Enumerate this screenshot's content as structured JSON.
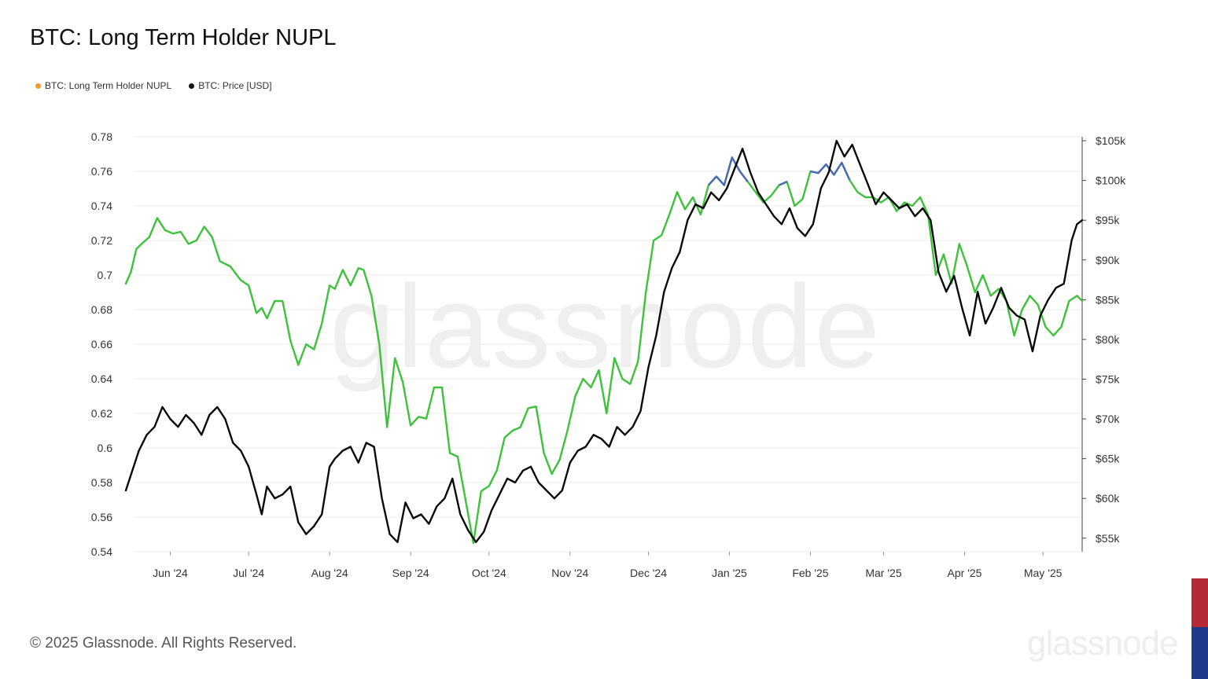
{
  "title": "BTC: Long Term Holder NUPL",
  "legend": [
    {
      "label": "BTC: Long Term Holder NUPL",
      "color": "#f39c2d"
    },
    {
      "label": "BTC: Price [USD]",
      "color": "#111111"
    }
  ],
  "copyright": "© 2025 Glassnode. All Rights Reserved.",
  "watermark": "glassnode",
  "corner_logo": "glassnode",
  "colors": {
    "nupl_line": "#3ec13b",
    "nupl_line_peak": "#4a67b8",
    "price_line": "#0a0a0a",
    "grid": "#ececec",
    "axis_text": "#333333",
    "flag_top": "#b52a35",
    "flag_bottom": "#1f3a8a"
  },
  "chart_data": {
    "type": "line",
    "x_ticks": [
      "Jun '24",
      "Jul '24",
      "Aug '24",
      "Sep '24",
      "Oct '24",
      "Nov '24",
      "Dec '24",
      "Jan '25",
      "Feb '25",
      "Mar '25",
      "Apr '25",
      "May '25"
    ],
    "x_range": [
      "2024-05-15",
      "2025-05-16"
    ],
    "y_left": {
      "ticks": [
        "0.78",
        "0.76",
        "0.74",
        "0.72",
        "0.7",
        "0.68",
        "0.66",
        "0.64",
        "0.62",
        "0.6",
        "0.58",
        "0.56",
        "0.54"
      ],
      "range": [
        0.54,
        0.78
      ]
    },
    "y_right": {
      "ticks": [
        "$105k",
        "$100k",
        "$95k",
        "$90k",
        "$85k",
        "$80k",
        "$75k",
        "$70k",
        "$65k",
        "$60k",
        "$55k"
      ],
      "range": [
        53300,
        105500
      ]
    },
    "grid": true,
    "legend_position": "top-left",
    "series": [
      {
        "name": "BTC: Long Term Holder NUPL",
        "axis": "left",
        "points": [
          [
            "2024-05-15",
            0.695
          ],
          [
            "2024-05-17",
            0.702
          ],
          [
            "2024-05-19",
            0.715
          ],
          [
            "2024-05-21",
            0.718
          ],
          [
            "2024-05-24",
            0.722
          ],
          [
            "2024-05-27",
            0.733
          ],
          [
            "2024-05-30",
            0.726
          ],
          [
            "2024-06-02",
            0.724
          ],
          [
            "2024-06-05",
            0.725
          ],
          [
            "2024-06-08",
            0.718
          ],
          [
            "2024-06-11",
            0.72
          ],
          [
            "2024-06-14",
            0.728
          ],
          [
            "2024-06-17",
            0.722
          ],
          [
            "2024-06-20",
            0.708
          ],
          [
            "2024-06-24",
            0.705
          ],
          [
            "2024-06-28",
            0.697
          ],
          [
            "2024-07-01",
            0.694
          ],
          [
            "2024-07-04",
            0.678
          ],
          [
            "2024-07-06",
            0.681
          ],
          [
            "2024-07-08",
            0.675
          ],
          [
            "2024-07-11",
            0.685
          ],
          [
            "2024-07-14",
            0.685
          ],
          [
            "2024-07-17",
            0.662
          ],
          [
            "2024-07-20",
            0.648
          ],
          [
            "2024-07-23",
            0.66
          ],
          [
            "2024-07-26",
            0.657
          ],
          [
            "2024-07-29",
            0.672
          ],
          [
            "2024-08-01",
            0.694
          ],
          [
            "2024-08-03",
            0.692
          ],
          [
            "2024-08-06",
            0.703
          ],
          [
            "2024-08-09",
            0.694
          ],
          [
            "2024-08-12",
            0.704
          ],
          [
            "2024-08-14",
            0.703
          ],
          [
            "2024-08-17",
            0.688
          ],
          [
            "2024-08-20",
            0.66
          ],
          [
            "2024-08-23",
            0.612
          ],
          [
            "2024-08-26",
            0.652
          ],
          [
            "2024-08-29",
            0.638
          ],
          [
            "2024-09-01",
            0.613
          ],
          [
            "2024-09-04",
            0.618
          ],
          [
            "2024-09-07",
            0.617
          ],
          [
            "2024-09-10",
            0.635
          ],
          [
            "2024-09-13",
            0.635
          ],
          [
            "2024-09-16",
            0.597
          ],
          [
            "2024-09-19",
            0.595
          ],
          [
            "2024-09-22",
            0.57
          ],
          [
            "2024-09-25",
            0.545
          ],
          [
            "2024-09-28",
            0.575
          ],
          [
            "2024-10-01",
            0.578
          ],
          [
            "2024-10-04",
            0.587
          ],
          [
            "2024-10-07",
            0.606
          ],
          [
            "2024-10-10",
            0.61
          ],
          [
            "2024-10-13",
            0.612
          ],
          [
            "2024-10-16",
            0.623
          ],
          [
            "2024-10-19",
            0.624
          ],
          [
            "2024-10-22",
            0.597
          ],
          [
            "2024-10-25",
            0.585
          ],
          [
            "2024-10-28",
            0.593
          ],
          [
            "2024-10-31",
            0.61
          ],
          [
            "2024-11-03",
            0.63
          ],
          [
            "2024-11-06",
            0.64
          ],
          [
            "2024-11-09",
            0.635
          ],
          [
            "2024-11-12",
            0.645
          ],
          [
            "2024-11-15",
            0.62
          ],
          [
            "2024-11-18",
            0.652
          ],
          [
            "2024-11-21",
            0.64
          ],
          [
            "2024-11-24",
            0.637
          ],
          [
            "2024-11-27",
            0.65
          ],
          [
            "2024-11-30",
            0.69
          ],
          [
            "2024-12-03",
            0.72
          ],
          [
            "2024-12-06",
            0.723
          ],
          [
            "2024-12-09",
            0.735
          ],
          [
            "2024-12-12",
            0.748
          ],
          [
            "2024-12-15",
            0.738
          ],
          [
            "2024-12-18",
            0.745
          ],
          [
            "2024-12-21",
            0.735
          ],
          [
            "2024-12-24",
            0.752
          ],
          [
            "2024-12-27",
            0.757
          ],
          [
            "2024-12-30",
            0.752
          ],
          [
            "2025-01-02",
            0.768
          ],
          [
            "2025-01-05",
            0.76
          ],
          [
            "2025-01-08",
            0.754
          ],
          [
            "2025-01-11",
            0.748
          ],
          [
            "2025-01-14",
            0.742
          ],
          [
            "2025-01-17",
            0.746
          ],
          [
            "2025-01-20",
            0.752
          ],
          [
            "2025-01-23",
            0.754
          ],
          [
            "2025-01-26",
            0.74
          ],
          [
            "2025-01-29",
            0.744
          ],
          [
            "2025-02-01",
            0.76
          ],
          [
            "2025-02-04",
            0.759
          ],
          [
            "2025-02-07",
            0.764
          ],
          [
            "2025-02-10",
            0.758
          ],
          [
            "2025-02-13",
            0.765
          ],
          [
            "2025-02-16",
            0.755
          ],
          [
            "2025-02-19",
            0.748
          ],
          [
            "2025-02-22",
            0.745
          ],
          [
            "2025-02-25",
            0.745
          ],
          [
            "2025-02-28",
            0.742
          ],
          [
            "2025-03-03",
            0.745
          ],
          [
            "2025-03-06",
            0.737
          ],
          [
            "2025-03-09",
            0.742
          ],
          [
            "2025-03-12",
            0.74
          ],
          [
            "2025-03-15",
            0.745
          ],
          [
            "2025-03-18",
            0.735
          ],
          [
            "2025-03-21",
            0.7
          ],
          [
            "2025-03-24",
            0.712
          ],
          [
            "2025-03-27",
            0.695
          ],
          [
            "2025-03-30",
            0.718
          ],
          [
            "2025-04-02",
            0.705
          ],
          [
            "2025-04-05",
            0.69
          ],
          [
            "2025-04-08",
            0.7
          ],
          [
            "2025-04-11",
            0.688
          ],
          [
            "2025-04-14",
            0.692
          ],
          [
            "2025-04-17",
            0.685
          ],
          [
            "2025-04-20",
            0.665
          ],
          [
            "2025-04-23",
            0.68
          ],
          [
            "2025-04-26",
            0.688
          ],
          [
            "2025-04-29",
            0.683
          ],
          [
            "2025-05-02",
            0.67
          ],
          [
            "2025-05-05",
            0.665
          ],
          [
            "2025-05-08",
            0.67
          ],
          [
            "2025-05-11",
            0.685
          ],
          [
            "2025-05-14",
            0.688
          ],
          [
            "2025-05-16",
            0.685
          ]
        ]
      },
      {
        "name": "BTC: Price [USD]",
        "axis": "right",
        "points": [
          [
            "2024-05-15",
            61000
          ],
          [
            "2024-05-17",
            63000
          ],
          [
            "2024-05-20",
            66000
          ],
          [
            "2024-05-23",
            68000
          ],
          [
            "2024-05-26",
            69000
          ],
          [
            "2024-05-29",
            71500
          ],
          [
            "2024-06-01",
            70000
          ],
          [
            "2024-06-04",
            69000
          ],
          [
            "2024-06-07",
            70500
          ],
          [
            "2024-06-10",
            69500
          ],
          [
            "2024-06-13",
            68000
          ],
          [
            "2024-06-16",
            70500
          ],
          [
            "2024-06-19",
            71500
          ],
          [
            "2024-06-22",
            70000
          ],
          [
            "2024-06-25",
            67000
          ],
          [
            "2024-06-28",
            66000
          ],
          [
            "2024-07-01",
            64000
          ],
          [
            "2024-07-04",
            60500
          ],
          [
            "2024-07-06",
            58000
          ],
          [
            "2024-07-08",
            61500
          ],
          [
            "2024-07-11",
            60000
          ],
          [
            "2024-07-14",
            60500
          ],
          [
            "2024-07-17",
            61500
          ],
          [
            "2024-07-20",
            57000
          ],
          [
            "2024-07-23",
            55500
          ],
          [
            "2024-07-26",
            56500
          ],
          [
            "2024-07-29",
            58000
          ],
          [
            "2024-08-01",
            64000
          ],
          [
            "2024-08-03",
            65000
          ],
          [
            "2024-08-06",
            66000
          ],
          [
            "2024-08-09",
            66500
          ],
          [
            "2024-08-12",
            64500
          ],
          [
            "2024-08-15",
            67000
          ],
          [
            "2024-08-18",
            66500
          ],
          [
            "2024-08-21",
            60000
          ],
          [
            "2024-08-24",
            55500
          ],
          [
            "2024-08-27",
            54500
          ],
          [
            "2024-08-30",
            59500
          ],
          [
            "2024-09-02",
            57500
          ],
          [
            "2024-09-05",
            58000
          ],
          [
            "2024-09-08",
            56800
          ],
          [
            "2024-09-11",
            59000
          ],
          [
            "2024-09-14",
            60000
          ],
          [
            "2024-09-17",
            62500
          ],
          [
            "2024-09-20",
            58000
          ],
          [
            "2024-09-23",
            56000
          ],
          [
            "2024-09-26",
            54500
          ],
          [
            "2024-09-29",
            55800
          ],
          [
            "2024-10-02",
            58500
          ],
          [
            "2024-10-05",
            60500
          ],
          [
            "2024-10-08",
            62500
          ],
          [
            "2024-10-11",
            62000
          ],
          [
            "2024-10-14",
            63500
          ],
          [
            "2024-10-17",
            64000
          ],
          [
            "2024-10-20",
            62000
          ],
          [
            "2024-10-23",
            61000
          ],
          [
            "2024-10-26",
            60000
          ],
          [
            "2024-10-29",
            61000
          ],
          [
            "2024-11-01",
            64500
          ],
          [
            "2024-11-04",
            66000
          ],
          [
            "2024-11-07",
            66500
          ],
          [
            "2024-11-10",
            68000
          ],
          [
            "2024-11-13",
            67500
          ],
          [
            "2024-11-16",
            66500
          ],
          [
            "2024-11-19",
            69000
          ],
          [
            "2024-11-22",
            68000
          ],
          [
            "2024-11-25",
            69000
          ],
          [
            "2024-11-28",
            71000
          ],
          [
            "2024-12-01",
            76500
          ],
          [
            "2024-12-04",
            80500
          ],
          [
            "2024-12-07",
            86000
          ],
          [
            "2024-12-10",
            89000
          ],
          [
            "2024-12-13",
            91000
          ],
          [
            "2024-12-16",
            95000
          ],
          [
            "2024-12-19",
            97000
          ],
          [
            "2024-12-22",
            96500
          ],
          [
            "2024-12-25",
            98500
          ],
          [
            "2024-12-28",
            97500
          ],
          [
            "2024-12-31",
            99000
          ],
          [
            "2025-01-03",
            101500
          ],
          [
            "2025-01-06",
            104000
          ],
          [
            "2025-01-09",
            101000
          ],
          [
            "2025-01-12",
            98500
          ],
          [
            "2025-01-15",
            97000
          ],
          [
            "2025-01-18",
            95500
          ],
          [
            "2025-01-21",
            94500
          ],
          [
            "2025-01-24",
            96500
          ],
          [
            "2025-01-27",
            94000
          ],
          [
            "2025-01-30",
            93000
          ],
          [
            "2025-02-02",
            94500
          ],
          [
            "2025-02-05",
            99000
          ],
          [
            "2025-02-08",
            101000
          ],
          [
            "2025-02-11",
            105000
          ],
          [
            "2025-02-14",
            103000
          ],
          [
            "2025-02-17",
            104500
          ],
          [
            "2025-02-20",
            102000
          ],
          [
            "2025-02-23",
            99500
          ],
          [
            "2025-02-26",
            97000
          ],
          [
            "2025-03-01",
            98500
          ],
          [
            "2025-03-04",
            97500
          ],
          [
            "2025-03-07",
            96500
          ],
          [
            "2025-03-10",
            97000
          ],
          [
            "2025-03-13",
            95500
          ],
          [
            "2025-03-16",
            96500
          ],
          [
            "2025-03-19",
            95000
          ],
          [
            "2025-03-22",
            88500
          ],
          [
            "2025-03-25",
            86000
          ],
          [
            "2025-03-28",
            88000
          ],
          [
            "2025-03-31",
            84000
          ],
          [
            "2025-04-03",
            80500
          ],
          [
            "2025-04-06",
            86000
          ],
          [
            "2025-04-09",
            82000
          ],
          [
            "2025-04-12",
            84000
          ],
          [
            "2025-04-15",
            86500
          ],
          [
            "2025-04-18",
            84000
          ],
          [
            "2025-04-21",
            83000
          ],
          [
            "2025-04-24",
            82500
          ],
          [
            "2025-04-27",
            78500
          ],
          [
            "2025-04-30",
            83000
          ],
          [
            "2025-05-03",
            85000
          ],
          [
            "2025-05-06",
            86500
          ],
          [
            "2025-05-09",
            87000
          ],
          [
            "2025-05-12",
            92500
          ],
          [
            "2025-05-14",
            94500
          ],
          [
            "2025-05-16",
            95000
          ]
        ]
      }
    ]
  }
}
